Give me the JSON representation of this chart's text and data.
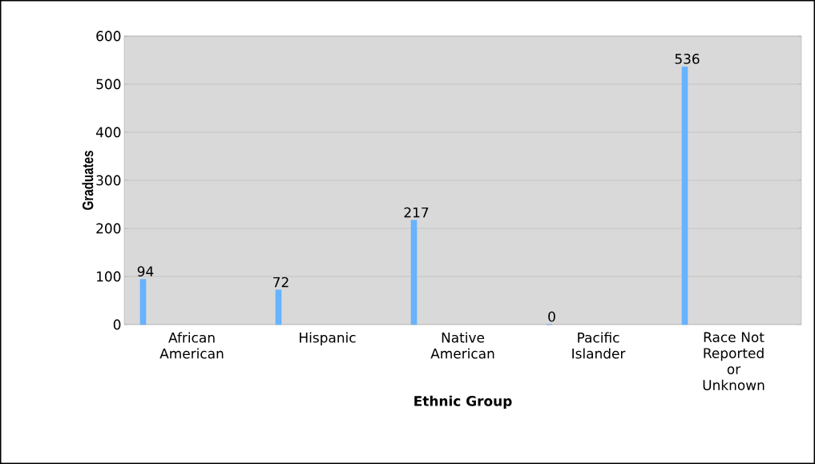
{
  "chart_data": {
    "type": "bar",
    "xlabel": "Ethnic Group",
    "ylabel": "Graduates",
    "categories": [
      "African American",
      "Hispanic",
      "Native American",
      "Pacific Islander",
      "Race Not Reported or Unknown"
    ],
    "values": [
      94,
      72,
      217,
      0,
      536
    ],
    "color": "#66b3ff",
    "ylim": [
      0,
      600
    ],
    "yticks": [
      0,
      100,
      200,
      300,
      400,
      500,
      600
    ],
    "grid": "y",
    "data_labels": true
  }
}
